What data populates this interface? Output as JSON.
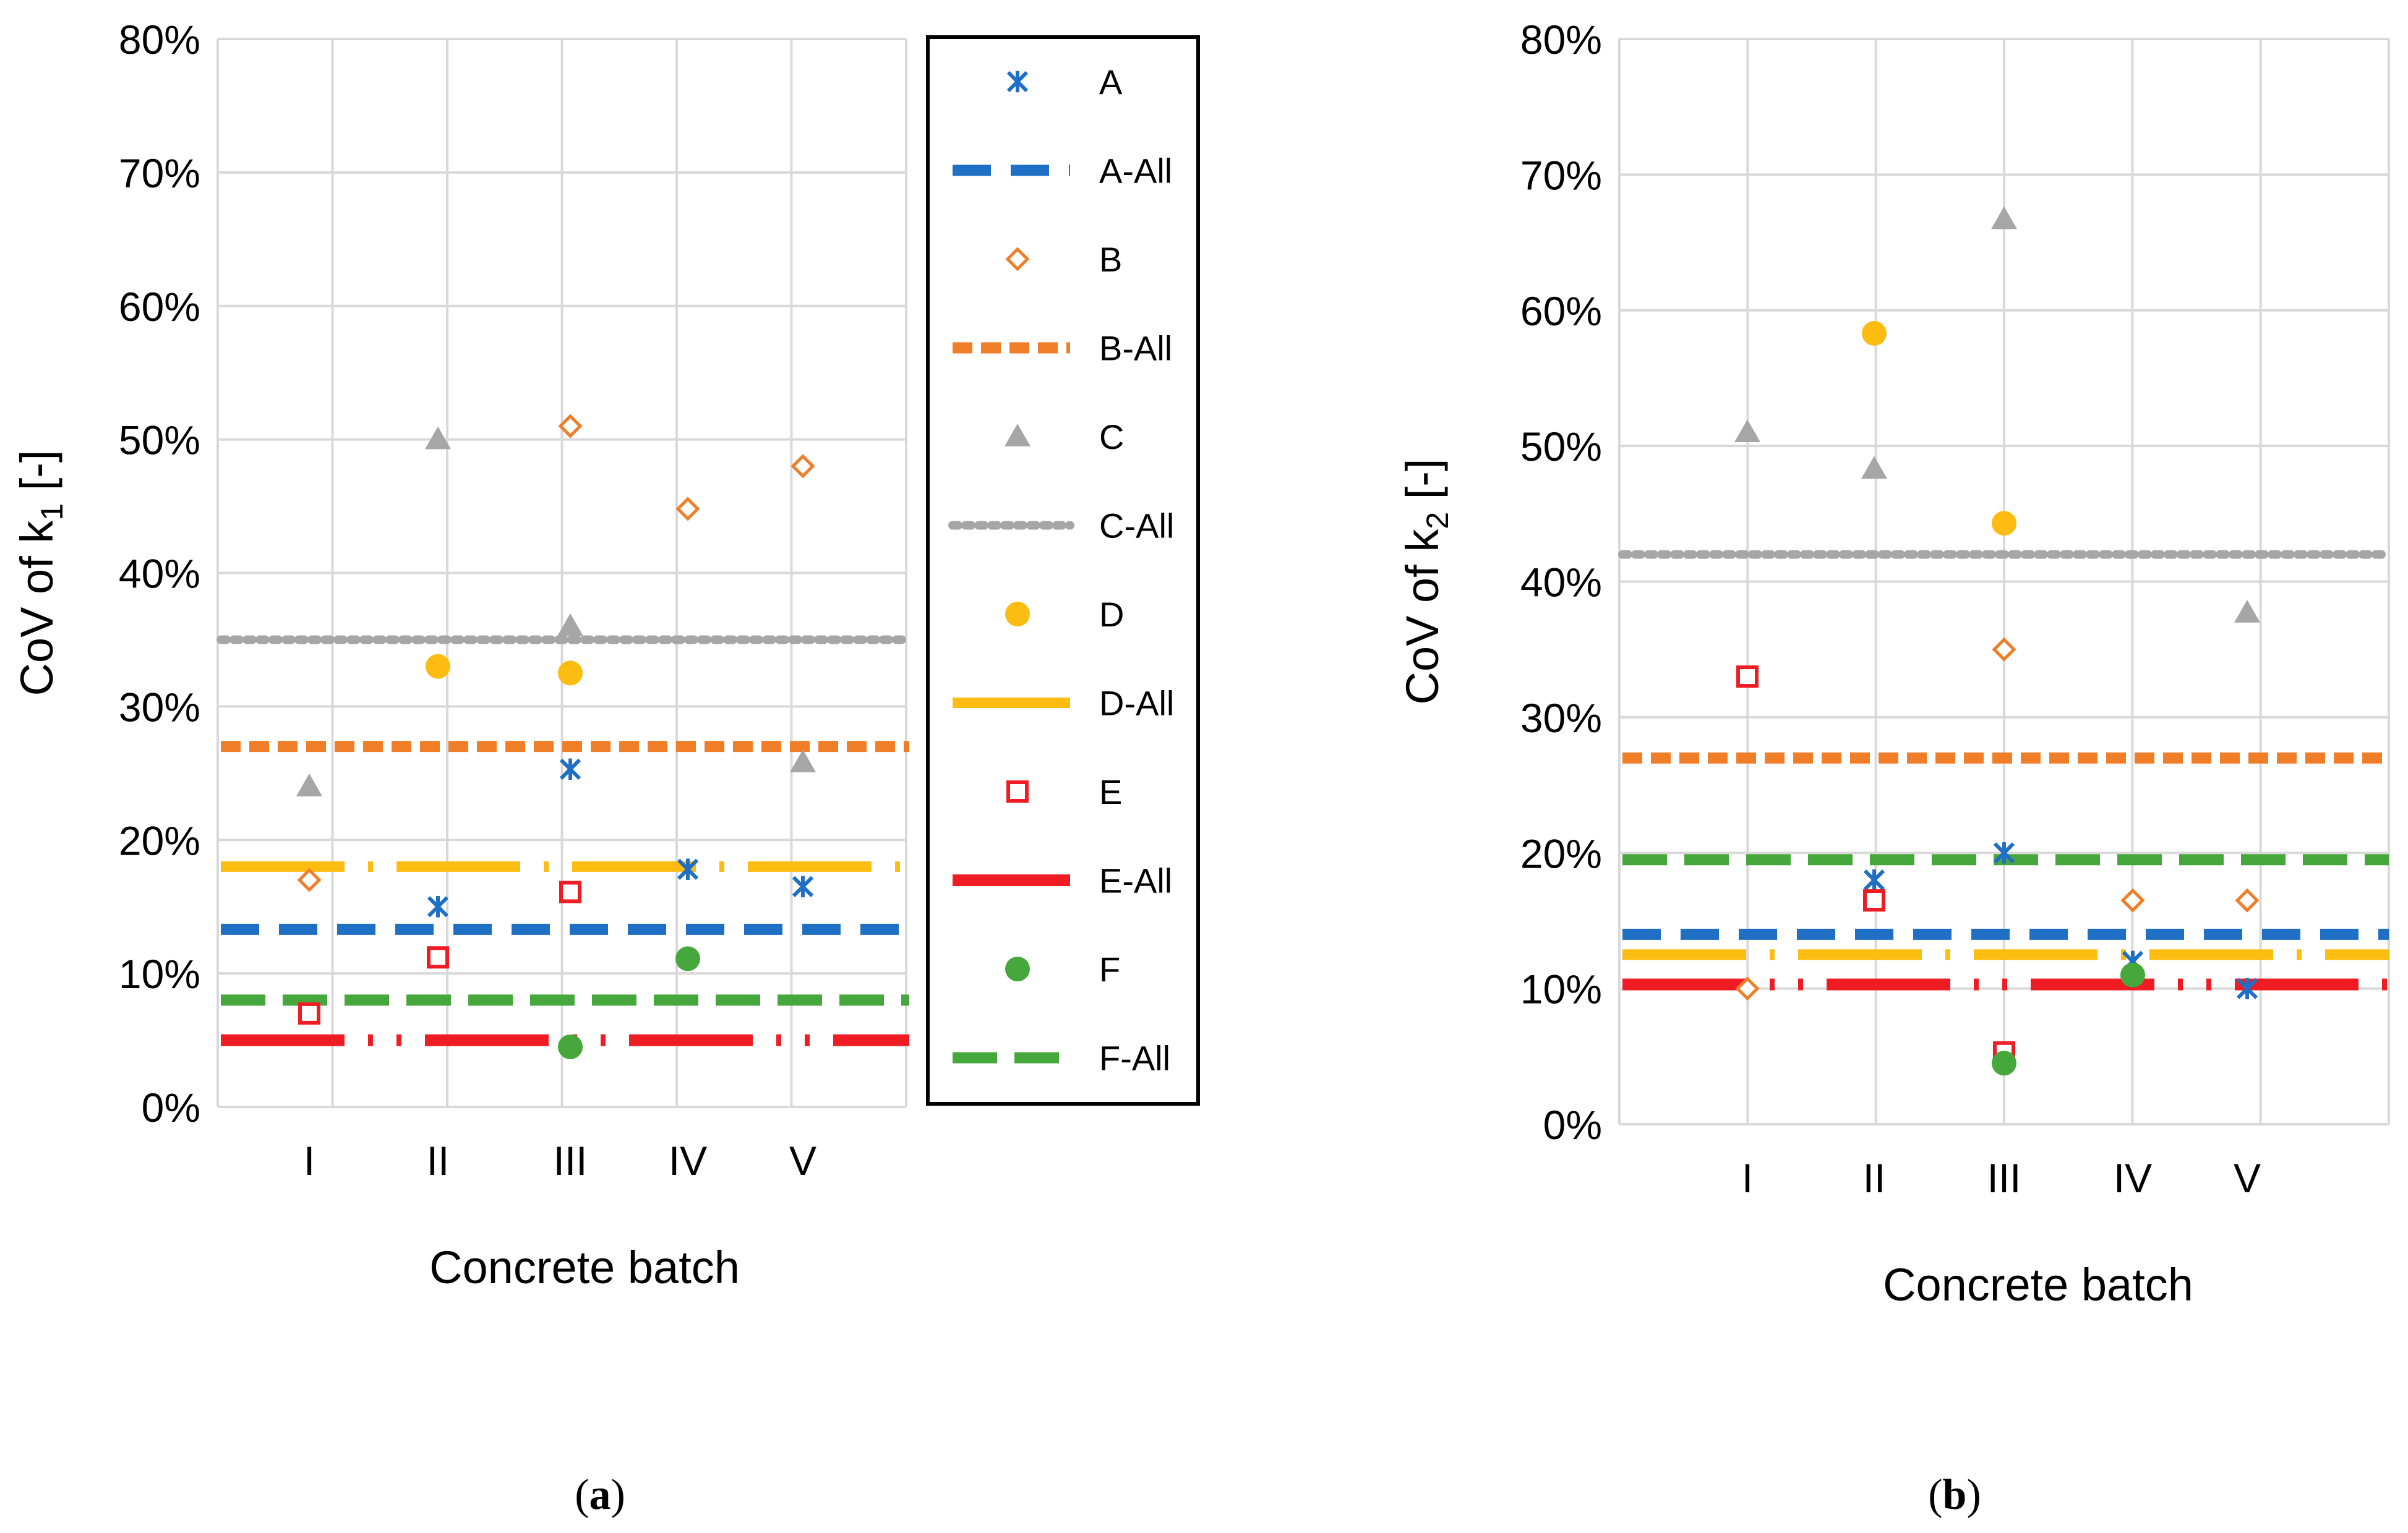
{
  "chart_data": [
    {
      "type": "scatter",
      "panel": "(a)",
      "panel_letter": "a",
      "ylabel_main": "CoV of k",
      "ylabel_sub": "1",
      "ylabel_tail": " [-]",
      "xlabel": "Concrete batch",
      "categories": [
        "I",
        "II",
        "III",
        "IV",
        "V"
      ],
      "ylim": [
        0,
        0.8
      ],
      "yticks": [
        "0%",
        "10%",
        "20%",
        "30%",
        "40%",
        "50%",
        "60%",
        "70%",
        "80%"
      ],
      "series": [
        {
          "name": "A",
          "points": [
            [
              2,
              0.15
            ],
            [
              3,
              0.253
            ],
            [
              4,
              0.178
            ],
            [
              5,
              0.165
            ]
          ]
        },
        {
          "name": "B",
          "points": [
            [
              1,
              0.17
            ],
            [
              3,
              0.51
            ],
            [
              4,
              0.448
            ],
            [
              5,
              0.48
            ]
          ]
        },
        {
          "name": "C",
          "points": [
            [
              1,
              0.24
            ],
            [
              2,
              0.5
            ],
            [
              3,
              0.36
            ],
            [
              5,
              0.258
            ]
          ]
        },
        {
          "name": "D",
          "points": [
            [
              2,
              0.33
            ],
            [
              3,
              0.325
            ]
          ]
        },
        {
          "name": "E",
          "points": [
            [
              1,
              0.07
            ],
            [
              2,
              0.112
            ],
            [
              3,
              0.161
            ]
          ]
        },
        {
          "name": "F",
          "points": [
            [
              3,
              0.045
            ],
            [
              4,
              0.111
            ]
          ]
        }
      ],
      "all_lines": [
        {
          "name": "A-All",
          "value": 0.133
        },
        {
          "name": "B-All",
          "value": 0.27
        },
        {
          "name": "C-All",
          "value": 0.35
        },
        {
          "name": "D-All",
          "value": 0.18
        },
        {
          "name": "E-All",
          "value": 0.05
        },
        {
          "name": "F-All",
          "value": 0.08
        }
      ],
      "legend": [
        "A",
        "A-All",
        "B",
        "B-All",
        "C",
        "C-All",
        "D",
        "D-All",
        "E",
        "E-All",
        "F",
        "F-All"
      ]
    },
    {
      "type": "scatter",
      "panel": "(b)",
      "panel_letter": "b",
      "ylabel_main": "CoV of k",
      "ylabel_sub": "2",
      "ylabel_tail": " [-]",
      "xlabel": "Concrete batch",
      "categories": [
        "I",
        "II",
        "III",
        "IV",
        "V"
      ],
      "ylim": [
        0,
        0.8
      ],
      "yticks": [
        "0%",
        "10%",
        "20%",
        "30%",
        "40%",
        "50%",
        "60%",
        "70%",
        "80%"
      ],
      "series": [
        {
          "name": "A",
          "points": [
            [
              2,
              0.18
            ],
            [
              3,
              0.2
            ],
            [
              4,
              0.12
            ],
            [
              5,
              0.1
            ]
          ]
        },
        {
          "name": "B",
          "points": [
            [
              1,
              0.1
            ],
            [
              3,
              0.35
            ],
            [
              4,
              0.165
            ],
            [
              5,
              0.165
            ]
          ]
        },
        {
          "name": "C",
          "points": [
            [
              1,
              0.51
            ],
            [
              2,
              0.483
            ],
            [
              3,
              0.667
            ],
            [
              5,
              0.377
            ]
          ]
        },
        {
          "name": "D",
          "points": [
            [
              2,
              0.583
            ],
            [
              3,
              0.443
            ]
          ]
        },
        {
          "name": "E",
          "points": [
            [
              1,
              0.33
            ],
            [
              2,
              0.165
            ],
            [
              3,
              0.053
            ]
          ]
        },
        {
          "name": "F",
          "points": [
            [
              3,
              0.045
            ],
            [
              4,
              0.11
            ]
          ]
        }
      ],
      "all_lines": [
        {
          "name": "A-All",
          "value": 0.14
        },
        {
          "name": "B-All",
          "value": 0.27
        },
        {
          "name": "C-All",
          "value": 0.42
        },
        {
          "name": "D-All",
          "value": 0.125
        },
        {
          "name": "E-All",
          "value": 0.103
        },
        {
          "name": "F-All",
          "value": 0.195
        }
      ]
    }
  ],
  "colors": {
    "A": "#1f6fc4",
    "B": "#f07e28",
    "C": "#a6a6a6",
    "D": "#fdbc12",
    "E": "#ef1c24",
    "F": "#46a83c",
    "grid": "#d9d9d9"
  }
}
